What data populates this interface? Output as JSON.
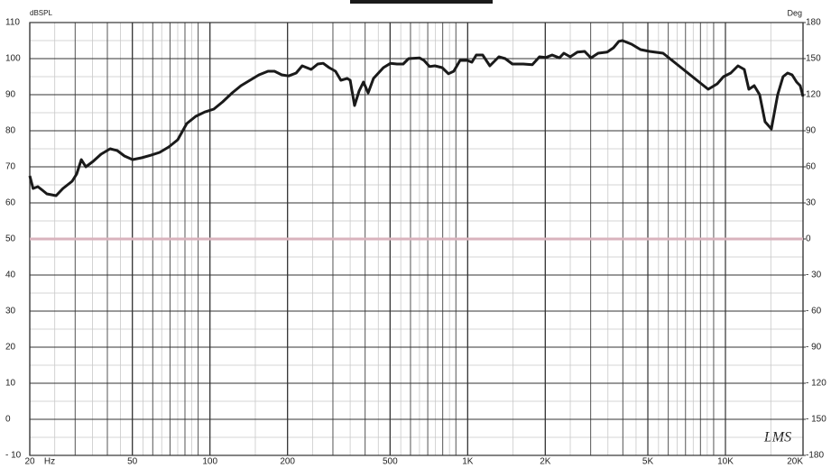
{
  "chart_data": {
    "type": "line",
    "y_label": "dBSPL",
    "y2_label": "Deg",
    "x_unit": "Hz",
    "logo": "LMS",
    "x_log": true,
    "grid": true,
    "color": "#1a1a1a",
    "reference_line": {
      "value": 50,
      "color": "#d9b3bd"
    },
    "xlim": [
      20,
      20000
    ],
    "xticks": [
      20,
      50,
      100,
      200,
      500,
      {
        "value": 1000,
        "label": "1K"
      },
      {
        "value": 2000,
        "label": "2K"
      },
      {
        "value": 5000,
        "label": "5K"
      },
      {
        "value": 10000,
        "label": "10K"
      },
      {
        "value": 20000,
        "label": "20K"
      }
    ],
    "ylim": [
      -10,
      110
    ],
    "yticks": [
      {
        "value": -10,
        "label": "- 10"
      },
      0,
      10,
      20,
      30,
      40,
      50,
      60,
      70,
      80,
      90,
      100,
      110
    ],
    "y2lim": [
      -180,
      180
    ],
    "y2ticks": [
      {
        "value": -180,
        "label": "-180"
      },
      {
        "value": -150,
        "label": "- 150"
      },
      {
        "value": -120,
        "label": "- 120"
      },
      {
        "value": -90,
        "label": "- 90"
      },
      {
        "value": -60,
        "label": "- 60"
      },
      {
        "value": -30,
        "label": "- 30"
      },
      0,
      30,
      60,
      90,
      120,
      150,
      180
    ],
    "x": [
      20,
      20.6,
      21.5,
      22.4,
      23.3,
      25.3,
      26.9,
      29.2,
      30.4,
      31.7,
      33,
      35.2,
      37.8,
      41,
      43.7,
      46.6,
      50.1,
      54.3,
      58.9,
      63.8,
      69.2,
      75,
      81.3,
      88.1,
      95.5,
      103.5,
      112,
      122,
      132,
      143,
      155,
      168,
      178,
      190,
      202,
      216,
      228,
      247,
      262,
      275,
      290,
      307,
      322,
      341,
      350,
      364,
      379,
      394,
      411,
      431,
      471,
      502,
      532,
      562,
      590,
      650,
      677,
      711,
      746,
      796,
      842,
      883,
      934,
      997,
      1038,
      1080,
      1143,
      1219,
      1321,
      1398,
      1491,
      1643,
      1781,
      1899,
      2009,
      2127,
      2269,
      2361,
      2499,
      2665,
      2843,
      3007,
      3208,
      3476,
      3678,
      3860,
      3987,
      4322,
      4684,
      5078,
      5728,
      6209,
      6730,
      7295,
      7907,
      8572,
      9290,
      9829,
      10485,
      11185,
      11834,
      12326,
      12931,
      13572,
      14245,
      15073,
      15946,
      16734,
      17420,
      18137,
      18890,
      19500,
      20000
    ],
    "values": [
      67.5,
      64,
      64.5,
      63.5,
      62.5,
      62,
      64,
      66,
      68,
      72,
      70,
      71.5,
      73.5,
      75,
      74.5,
      73,
      72,
      72.5,
      73.2,
      74,
      75.5,
      77.5,
      82,
      84,
      85.2,
      86,
      88,
      90.5,
      92.5,
      94,
      95.5,
      96.5,
      96.5,
      95.5,
      95.2,
      96,
      98,
      97,
      98.5,
      98.7,
      97.5,
      96.5,
      94,
      94.5,
      94,
      87,
      91,
      93.5,
      90.5,
      94.5,
      97.5,
      98.7,
      98.5,
      98.5,
      100,
      100.2,
      99.5,
      97.8,
      98,
      97.5,
      95.8,
      96.5,
      99.5,
      99.5,
      99,
      101,
      101,
      98,
      100.5,
      100,
      98.5,
      98.5,
      98.3,
      100.5,
      100.3,
      101,
      100.2,
      101.5,
      100.5,
      101.8,
      102,
      100.2,
      101.5,
      101.8,
      103,
      104.8,
      105,
      104,
      102.5,
      102,
      101.5,
      99.5,
      97.5,
      95.5,
      93.5,
      91.5,
      93,
      95,
      96,
      98,
      97,
      91.5,
      92.5,
      90,
      82.5,
      80.5,
      90,
      95,
      96,
      95.5,
      93.5,
      92.5,
      89.5
    ]
  }
}
